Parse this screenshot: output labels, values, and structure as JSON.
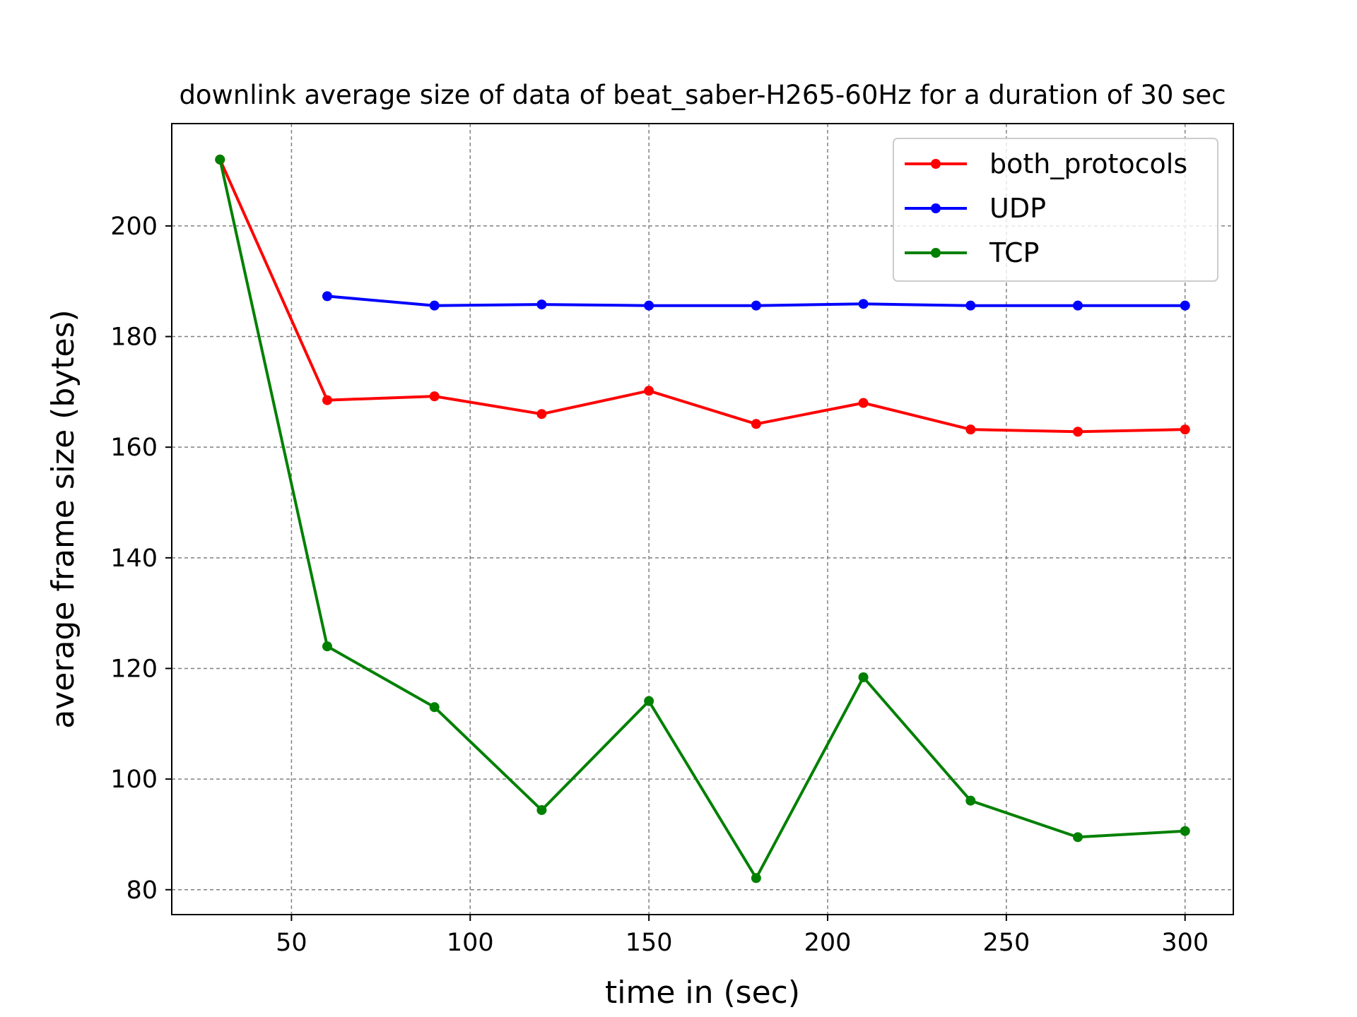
{
  "chart_data": {
    "type": "line",
    "title": "downlink average size of data of beat_saber-H265-60Hz for a duration of 30 sec",
    "xlabel": "time in (sec)",
    "ylabel": "average frame size (bytes)",
    "xlim": [
      16.5,
      313.5
    ],
    "ylim": [
      75.5,
      218.5
    ],
    "xticks": [
      50,
      100,
      150,
      200,
      250,
      300
    ],
    "yticks": [
      80,
      100,
      120,
      140,
      160,
      180,
      200
    ],
    "grid": true,
    "legend_position": "top-right",
    "series": [
      {
        "name": "both_protocols",
        "color": "#ff0000",
        "x": [
          30,
          60,
          90,
          120,
          150,
          180,
          210,
          240,
          270,
          300
        ],
        "y": [
          212.0,
          168.5,
          169.2,
          166.0,
          170.2,
          164.2,
          168.0,
          163.2,
          162.8,
          163.2
        ]
      },
      {
        "name": "UDP",
        "color": "#0000ff",
        "x": [
          60,
          90,
          120,
          150,
          180,
          210,
          240,
          270,
          300
        ],
        "y": [
          187.3,
          185.6,
          185.8,
          185.6,
          185.6,
          185.9,
          185.6,
          185.6,
          185.6
        ]
      },
      {
        "name": "TCP",
        "color": "#008000",
        "x": [
          30,
          60,
          90,
          120,
          150,
          180,
          210,
          240,
          270,
          300
        ],
        "y": [
          212.0,
          124.0,
          113.0,
          94.4,
          114.1,
          82.1,
          118.4,
          96.1,
          89.5,
          90.6
        ]
      }
    ]
  }
}
